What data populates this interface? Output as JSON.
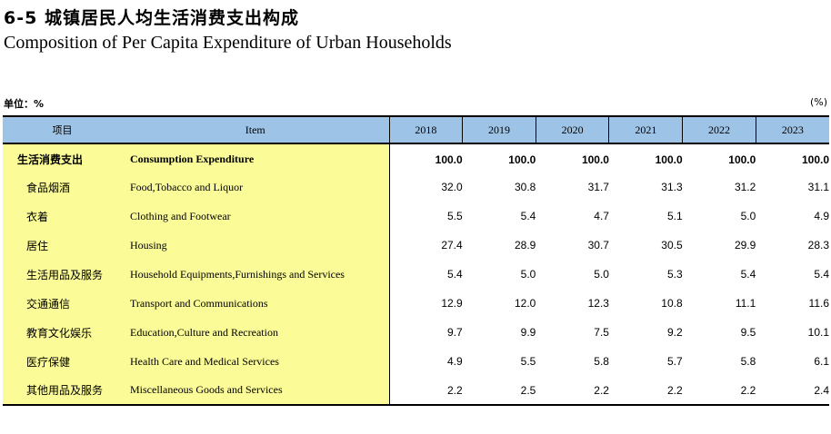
{
  "title": {
    "cn": "6-5  城镇居民人均生活消费支出构成",
    "en": "Composition of Per Capita Expenditure of Urban Households"
  },
  "unit": {
    "cn": "单位：%",
    "en": "(%)"
  },
  "header": {
    "item_cn": "项目",
    "item_en": "Item",
    "years": [
      "2018",
      "2019",
      "2020",
      "2021",
      "2022",
      "2023"
    ]
  },
  "rows": [
    {
      "cn": "生活消费支出",
      "en": "Consumption Expenditure",
      "values": [
        "100.0",
        "100.0",
        "100.0",
        "100.0",
        "100.0",
        "100.0"
      ]
    },
    {
      "cn": "食品烟酒",
      "en": "Food,Tobacco and Liquor",
      "values": [
        "32.0",
        "30.8",
        "31.7",
        "31.3",
        "31.2",
        "31.1"
      ]
    },
    {
      "cn": "衣着",
      "en": "Clothing and Footwear",
      "values": [
        "5.5",
        "5.4",
        "4.7",
        "5.1",
        "5.0",
        "4.9"
      ]
    },
    {
      "cn": "居住",
      "en": "Housing",
      "values": [
        "27.4",
        "28.9",
        "30.7",
        "30.5",
        "29.9",
        "28.3"
      ]
    },
    {
      "cn": "生活用品及服务",
      "en": "Household Equipments,Furnishings and Services",
      "values": [
        "5.4",
        "5.0",
        "5.0",
        "5.3",
        "5.4",
        "5.4"
      ]
    },
    {
      "cn": "交通通信",
      "en": "Transport and  Communications",
      "values": [
        "12.9",
        "12.0",
        "12.3",
        "10.8",
        "11.1",
        "11.6"
      ]
    },
    {
      "cn": "教育文化娱乐",
      "en": "Education,Culture and Recreation",
      "values": [
        "9.7",
        "9.9",
        "7.5",
        "9.2",
        "9.5",
        "10.1"
      ]
    },
    {
      "cn": "医疗保健",
      "en": "Health Care and Medical Services",
      "values": [
        "4.9",
        "5.5",
        "5.8",
        "5.7",
        "5.8",
        "6.1"
      ]
    },
    {
      "cn": "其他用品及服务",
      "en": "Miscellaneous Goods and Services",
      "values": [
        "2.2",
        "2.5",
        "2.2",
        "2.2",
        "2.2",
        "2.4"
      ]
    }
  ],
  "colors": {
    "header_bg": "#9dc3e6",
    "label_bg": "#fbfb97",
    "rule": "#000000"
  }
}
